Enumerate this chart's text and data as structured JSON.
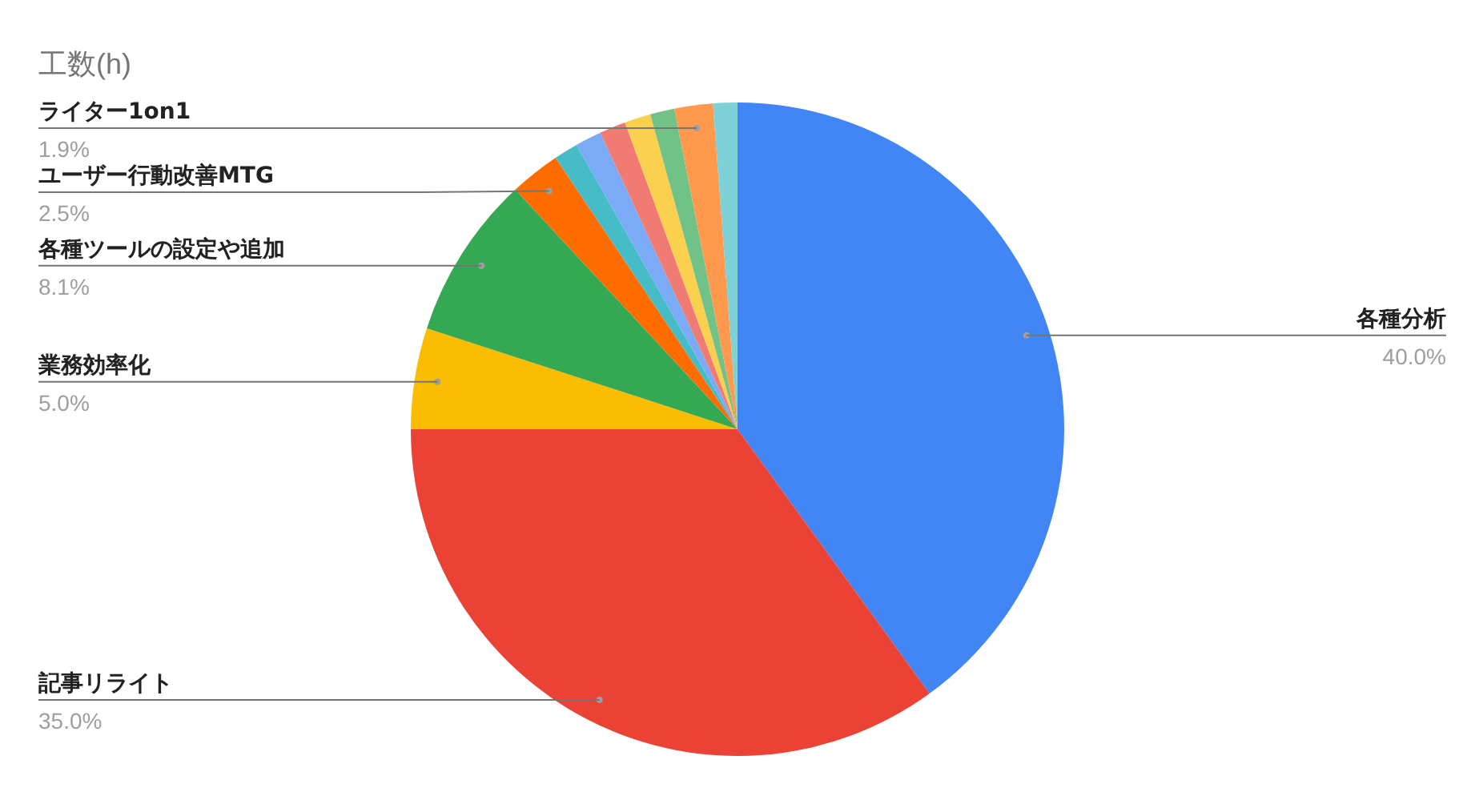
{
  "chart_data": {
    "type": "pie",
    "title": "工数(h)",
    "categories": [
      "各種分析",
      "記事リライト",
      "業務効率化",
      "各種ツールの設定や追加",
      "ユーザー行動改善MTG",
      null,
      null,
      null,
      null,
      null,
      "ライター1on1",
      null
    ],
    "values": [
      40.0,
      35.0,
      5.0,
      8.1,
      2.5,
      1.2,
      1.3,
      1.3,
      1.3,
      1.2,
      1.9,
      1.2
    ],
    "colors": [
      "#4285f4",
      "#ea4335",
      "#fbbc04",
      "#34a853",
      "#ff6d01",
      "#46bdc6",
      "#7baaf7",
      "#f07b72",
      "#fcd04f",
      "#71c287",
      "#ff994d",
      "#7ed1d7"
    ],
    "value_labels": [
      "40.0%",
      "35.0%",
      "5.0%",
      "8.1%",
      "2.5%",
      null,
      null,
      null,
      null,
      null,
      "1.9%",
      null
    ],
    "legend": false
  }
}
